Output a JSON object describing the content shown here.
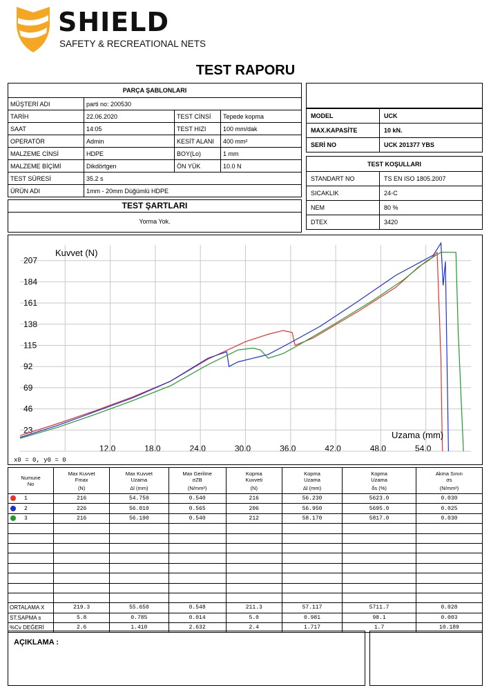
{
  "logo": {
    "name": "SHIELD",
    "tagline": "SAFETY & RECREATIONAL NETS"
  },
  "title": "TEST RAPORU",
  "parca": {
    "header": "PARÇA ŞABLONLARI",
    "musteri_label": "MÜŞTERİ ADI",
    "musteri_value": "parti no: 200530",
    "tarih_label": "TARİH",
    "tarih_value": "22.06.2020",
    "test_cinsi_label": "TEST CİNSİ",
    "test_cinsi_value": "Tepede kopma",
    "saat_label": "SAAT",
    "saat_value": "14:05",
    "test_hizi_label": "TEST HIZI",
    "test_hizi_value": "100 mm/dak",
    "operator_label": "OPERATÖR",
    "operator_value": "Admin",
    "kesit_label": "KESİT ALANI",
    "kesit_value": "400 mm²",
    "malzeme_cinsi_label": "MALZEME CİNSİ",
    "malzeme_cinsi_value": "HDPE",
    "boy_label": "BOY(Lo)",
    "boy_value": "1 mm",
    "malzeme_bicimi_label": "MALZEME BİÇİMİ",
    "malzeme_bicimi_value": "Dikdörtgen",
    "on_yuk_label": "ÖN YÜK",
    "on_yuk_value": "10.0 N",
    "test_suresi_label": "TEST SÜRESİ",
    "test_suresi_value": "35.2 s",
    "urun_label": "ÜRÜN ADI",
    "urun_value": "1mm - 20mm Düğümlü HDPE"
  },
  "sartlar": {
    "header": "TEST ŞARTLARI",
    "value": "Yorma Yok."
  },
  "machine": {
    "model_label": "MODEL",
    "model_value": "UCK",
    "kapasite_label": "MAX.KAPASİTE",
    "kapasite_value": "10 kN.",
    "seri_label": "SERİ NO",
    "seri_value": "UCK 201377 YBS"
  },
  "kosullar": {
    "header": "TEST KOŞULLARI",
    "standart_label": "STANDART NO",
    "standart_value": "TS EN ISO 1805.2007",
    "sicaklik_label": "SICAKLIK",
    "sicaklik_value": "24◦C",
    "nem_label": "NEM",
    "nem_value": "80 %",
    "dtex_label": "DTEX",
    "dtex_value": "3420"
  },
  "chart_data": {
    "type": "line",
    "ylabel": "Kuvvet (N)",
    "xlabel": "Uzama (mm)",
    "footer": "x0 = 0, y0 = 0",
    "xlim": [
      0,
      60
    ],
    "ylim": [
      0,
      224
    ],
    "x_ticks": [
      "12.0",
      "18.0",
      "24.0",
      "30.0",
      "36.0",
      "42.0",
      "48.0",
      "54.0"
    ],
    "y_ticks": [
      "23",
      "46",
      "69",
      "92",
      "115",
      "138",
      "161",
      "184",
      "207"
    ],
    "series": [
      {
        "color": "#e8302e",
        "points": [
          [
            0,
            17
          ],
          [
            5,
            30
          ],
          [
            10,
            44
          ],
          [
            15,
            59
          ],
          [
            20,
            76
          ],
          [
            25,
            100
          ],
          [
            30,
            119
          ],
          [
            33,
            127
          ],
          [
            35,
            131
          ],
          [
            36.2,
            129
          ],
          [
            36.6,
            115
          ],
          [
            39,
            123
          ],
          [
            45,
            152
          ],
          [
            50,
            178
          ],
          [
            53,
            200
          ],
          [
            54.5,
            208
          ],
          [
            55.5,
            216
          ],
          [
            56,
            100
          ],
          [
            56.2,
            0
          ]
        ]
      },
      {
        "color": "#1f2fd6",
        "points": [
          [
            0,
            15
          ],
          [
            5,
            28
          ],
          [
            10,
            43
          ],
          [
            15,
            58
          ],
          [
            20,
            76
          ],
          [
            25,
            101
          ],
          [
            27.5,
            108
          ],
          [
            27.8,
            92
          ],
          [
            29,
            97
          ],
          [
            31,
            101
          ],
          [
            32,
            103
          ],
          [
            33,
            105
          ],
          [
            36,
            118
          ],
          [
            40,
            136
          ],
          [
            45,
            163
          ],
          [
            50,
            191
          ],
          [
            55,
            213
          ],
          [
            56,
            226
          ],
          [
            56.3,
            180
          ],
          [
            56.6,
            206
          ],
          [
            57,
            0
          ]
        ]
      },
      {
        "color": "#1e9a2a",
        "points": [
          [
            0,
            14
          ],
          [
            5,
            26
          ],
          [
            10,
            40
          ],
          [
            15,
            55
          ],
          [
            20,
            71
          ],
          [
            25,
            94
          ],
          [
            29,
            110
          ],
          [
            31,
            112
          ],
          [
            32,
            110
          ],
          [
            33,
            101
          ],
          [
            35,
            106
          ],
          [
            37,
            115
          ],
          [
            42,
            139
          ],
          [
            47,
            164
          ],
          [
            51,
            186
          ],
          [
            54,
            206
          ],
          [
            56,
            216
          ],
          [
            58,
            216
          ],
          [
            58.3,
            130
          ],
          [
            59,
            0
          ]
        ]
      }
    ]
  },
  "results": {
    "headers": [
      {
        "l1": "Numune",
        "l2": "No",
        "l3": ""
      },
      {
        "l1": "Max Kuvvet",
        "l2": "Fmax",
        "l3": "(N)"
      },
      {
        "l1": "Max Kuvvet",
        "l2": "Uzama",
        "l3": "Δl (mm)"
      },
      {
        "l1": "Max Gerilme",
        "l2": "σZB",
        "l3": "(N/mm²)"
      },
      {
        "l1": "Kopma",
        "l2": "Kuvveti",
        "l3": "(N)"
      },
      {
        "l1": "Kopma",
        "l2": "Uzama",
        "l3": "Δl (mm)"
      },
      {
        "l1": "Kopma",
        "l2": "Uzama",
        "l3": "δs (%)"
      },
      {
        "l1": "Akma Sınırı",
        "l2": "σs",
        "l3": "(N/mm²)"
      }
    ],
    "rows": [
      {
        "color": "#e8302e",
        "no": "1",
        "fmax": "216",
        "uzama": "54.750",
        "gerilme": "0.540",
        "kopma_kuvvet": "216",
        "kopma_uzama": "56.230",
        "kopma_yuzde": "5623.0",
        "akma": "0.030"
      },
      {
        "color": "#1f2fd6",
        "no": "2",
        "fmax": "226",
        "uzama": "56.010",
        "gerilme": "0.565",
        "kopma_kuvvet": "206",
        "kopma_uzama": "56.950",
        "kopma_yuzde": "5695.0",
        "akma": "0.025"
      },
      {
        "color": "#1e9a2a",
        "no": "3",
        "fmax": "216",
        "uzama": "56.190",
        "gerilme": "0.540",
        "kopma_kuvvet": "212",
        "kopma_uzama": "58.170",
        "kopma_yuzde": "5817.0",
        "akma": "0.030"
      }
    ],
    "stats": [
      {
        "label": "ORTALAMA X",
        "v": [
          "219.3",
          "55.650",
          "0.548",
          "211.3",
          "57.117",
          "5711.7",
          "0.028"
        ]
      },
      {
        "label": "ST.SAPMA s",
        "v": [
          "5.8",
          "0.785",
          "0.014",
          "5.0",
          "0.981",
          "98.1",
          "0.003"
        ]
      },
      {
        "label": "%Cv DEĞERİ",
        "v": [
          "2.6",
          "1.410",
          "2.632",
          "2.4",
          "1.717",
          "1.7",
          "10.189"
        ]
      }
    ]
  },
  "aciklama": {
    "label": "AÇIKLAMA :"
  }
}
